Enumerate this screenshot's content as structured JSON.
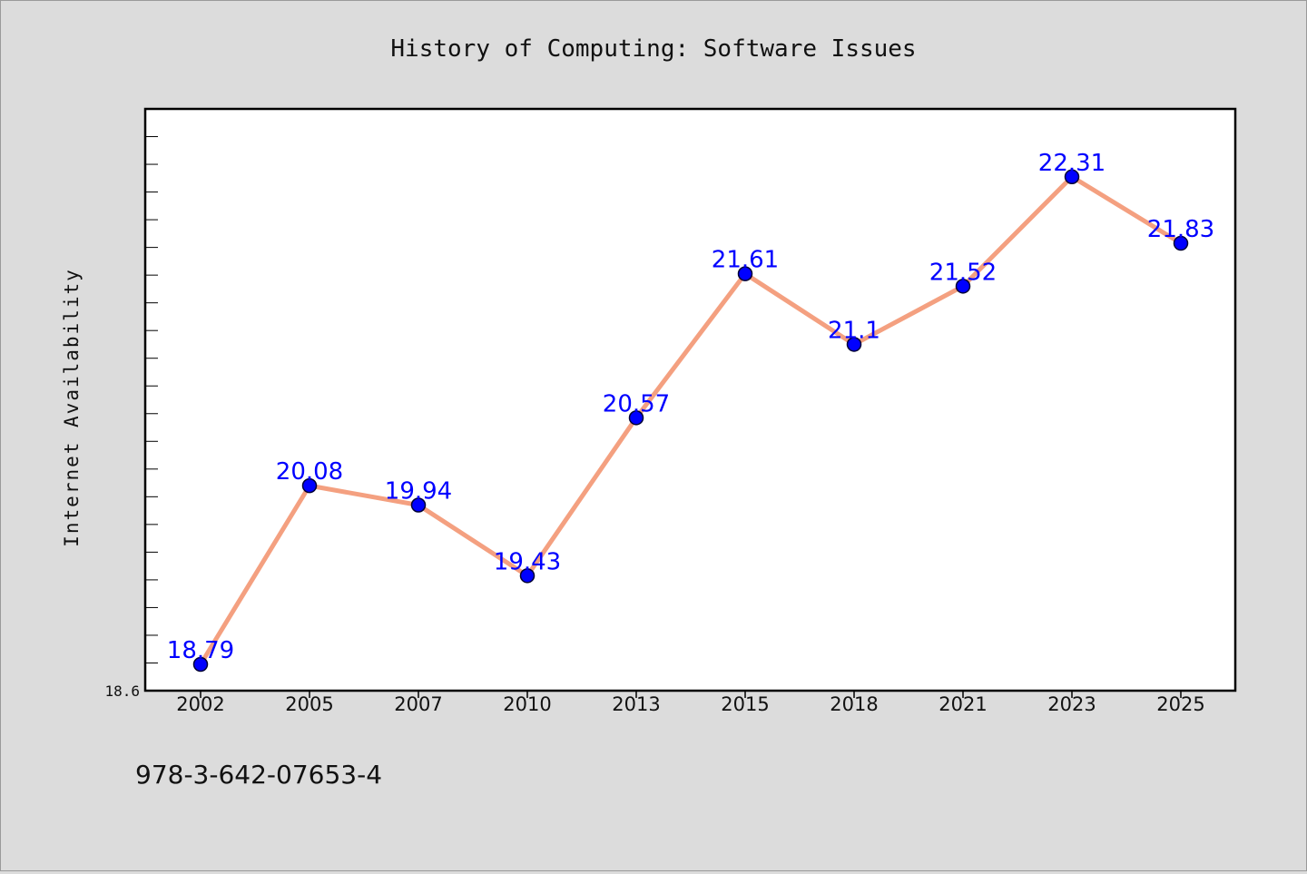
{
  "chart_data": {
    "type": "line",
    "title": "History of Computing: Software Issues",
    "xlabel": "",
    "ylabel": "Internet Availability",
    "categories": [
      "2002",
      "2005",
      "2007",
      "2010",
      "2013",
      "2015",
      "2018",
      "2021",
      "2023",
      "2025"
    ],
    "series": [
      {
        "values": [
          18.79,
          20.08,
          19.94,
          19.43,
          20.57,
          21.61,
          21.1,
          21.52,
          22.31,
          21.83
        ],
        "labels": [
          "18.79",
          "20.08",
          "19.94",
          "19.43",
          "20.57",
          "21.61",
          "21.1",
          "21.52",
          "22.31",
          "21.83"
        ]
      }
    ],
    "ylim": [
      18.6,
      22.8
    ],
    "yticks_labeled": [
      "18.6"
    ],
    "yminor_step": 0.2,
    "grid": false,
    "legend": "none",
    "colors": {
      "line": "#f4a080",
      "marker": "#0000ff",
      "marker_edge": "#000033",
      "label": "#0000ff",
      "plot_bg": "#ffffff",
      "page_bg": "#dcdcdc"
    }
  },
  "footer": {
    "isbn": "978-3-642-07653-4"
  }
}
